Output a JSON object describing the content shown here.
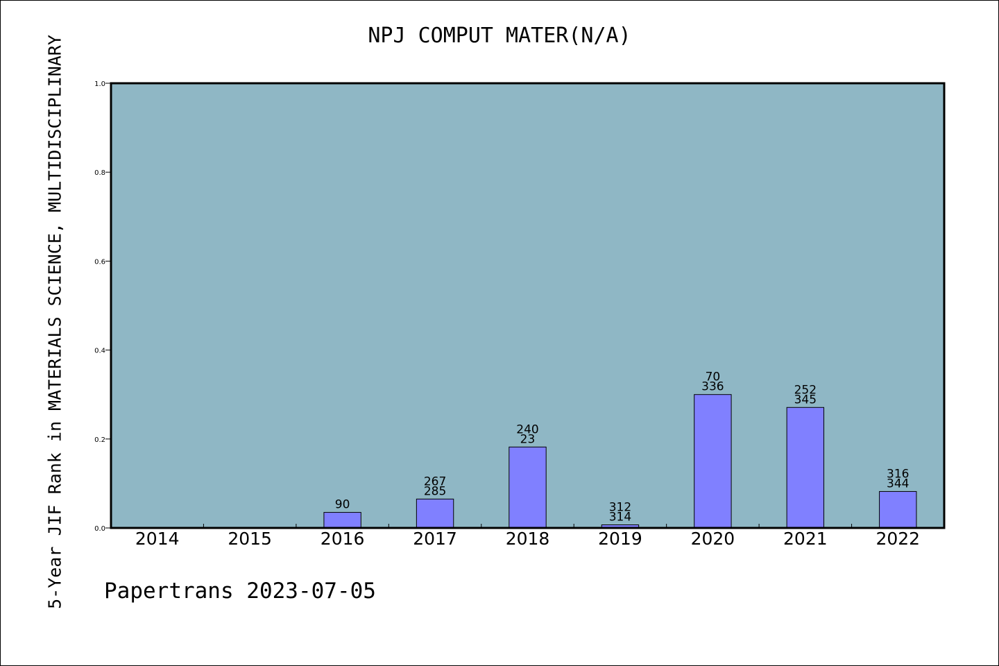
{
  "chart_data": {
    "type": "bar",
    "title": "NPJ COMPUT MATER(N/A)",
    "ylabel": "5-Year JIF Rank in MATERIALS SCIENCE, MULTIDISCIPLINARY",
    "xlabel": "",
    "footer": "Papertrans 2023-07-05",
    "ylim": [
      0,
      1.0
    ],
    "yticks": [
      "0.0",
      "0.2",
      "0.4",
      "0.6",
      "0.8",
      "1.0"
    ],
    "categories": [
      "2014",
      "2015",
      "2016",
      "2017",
      "2018",
      "2019",
      "2020",
      "2021",
      "2022"
    ],
    "values": [
      0,
      0,
      0.035,
      0.065,
      0.182,
      0.007,
      0.3,
      0.271,
      0.082
    ],
    "labels": [
      [],
      [],
      [
        "90"
      ],
      [
        "267",
        "285"
      ],
      [
        "240",
        "23"
      ],
      [
        "312",
        "314"
      ],
      [
        "70",
        "336"
      ],
      [
        "252",
        "345"
      ],
      [
        "316",
        "344"
      ]
    ],
    "grid": false,
    "colors": {
      "plot_bg": "#8fb7c5",
      "bar": "#8080ff",
      "bar_edge": "#000000"
    }
  }
}
